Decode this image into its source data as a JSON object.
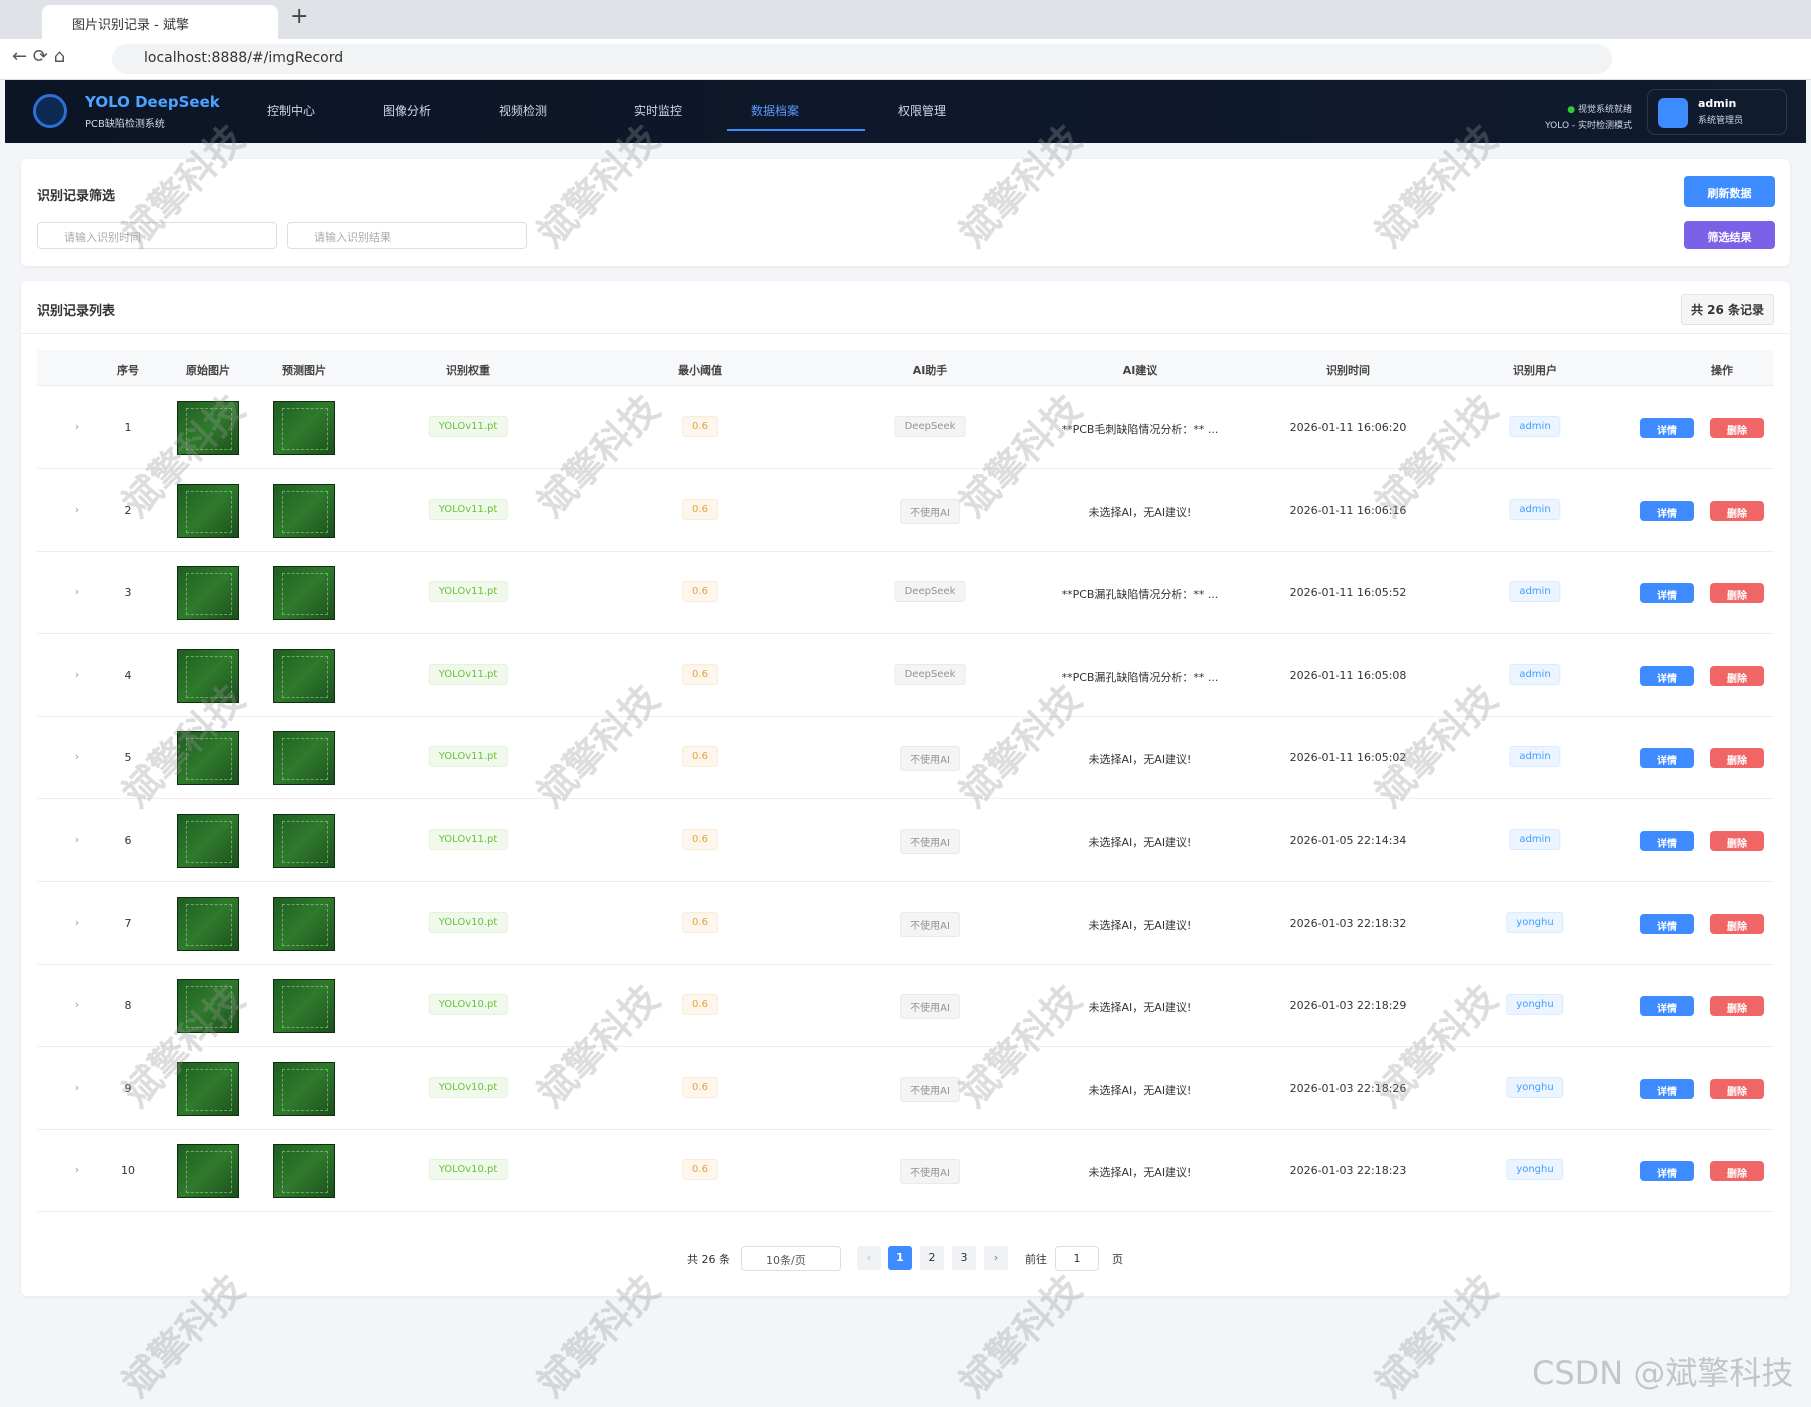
{
  "browser": {
    "tab_title": "图片识别记录 - 斌擎",
    "url": "localhost:8888/#/imgRecord"
  },
  "header": {
    "brand": "YOLO DeepSeek",
    "subtitle": "PCB缺陷检测系统",
    "nav": [
      "控制中心",
      "图像分析",
      "视频检测",
      "实时监控",
      "数据档案",
      "权限管理"
    ],
    "status": "视觉系统就绪",
    "mode": "YOLO - 实时检测模式",
    "user": "admin",
    "role": "系统管理员"
  },
  "filter": {
    "title": "识别记录筛选",
    "time_placeholder": "请输入识别时间",
    "result_placeholder": "请输入识别结果",
    "refresh": "刷新数据",
    "filter_button": "筛选结果"
  },
  "list": {
    "title": "识别记录列表",
    "count": "共 26 条记录",
    "columns": [
      "序号",
      "原始图片",
      "预测图片",
      "识别权重",
      "最小阈值",
      "AI助手",
      "AI建议",
      "识别时间",
      "识别用户",
      "操作"
    ],
    "rows": [
      [
        1,
        "YOLOv11.pt",
        0.6,
        "DeepSeek",
        "**PCB毛刺缺陷情况分析：** ...",
        "2026-01-11 16:06:20",
        "admin"
      ],
      [
        2,
        "YOLOv11.pt",
        0.6,
        "不使用AI",
        "未选择AI，无AI建议!",
        "2026-01-11 16:06:16",
        "admin"
      ],
      [
        3,
        "YOLOv11.pt",
        0.6,
        "DeepSeek",
        "**PCB漏孔缺陷情况分析：** ...",
        "2026-01-11 16:05:52",
        "admin"
      ],
      [
        4,
        "YOLOv11.pt",
        0.6,
        "DeepSeek",
        "**PCB漏孔缺陷情况分析：** ...",
        "2026-01-11 16:05:08",
        "admin"
      ],
      [
        5,
        "YOLOv11.pt",
        0.6,
        "不使用AI",
        "未选择AI，无AI建议!",
        "2026-01-11 16:05:02",
        "admin"
      ],
      [
        6,
        "YOLOv11.pt",
        0.6,
        "不使用AI",
        "未选择AI，无AI建议!",
        "2026-01-05 22:14:34",
        "admin"
      ],
      [
        7,
        "YOLOv10.pt",
        0.6,
        "不使用AI",
        "未选择AI，无AI建议!",
        "2026-01-03 22:18:32",
        "yonghu"
      ],
      [
        8,
        "YOLOv10.pt",
        0.6,
        "不使用AI",
        "未选择AI，无AI建议!",
        "2026-01-03 22:18:29",
        "yonghu"
      ],
      [
        9,
        "YOLOv10.pt",
        0.6,
        "不使用AI",
        "未选择AI，无AI建议!",
        "2026-01-03 22:18:26",
        "yonghu"
      ],
      [
        10,
        "YOLOv10.pt",
        0.6,
        "不使用AI",
        "未选择AI，无AI建议!",
        "2026-01-03 22:18:23",
        "yonghu"
      ]
    ],
    "detail": "详情",
    "delete": "删除"
  },
  "pagination": {
    "total": "共 26 条",
    "page_size": "10条/页",
    "pages": [
      1,
      2,
      3
    ],
    "goto": "前往",
    "goto_value": 1,
    "page_unit": "页"
  },
  "watermark": "斌擎科技",
  "csdn": "CSDN @斌擎科技"
}
